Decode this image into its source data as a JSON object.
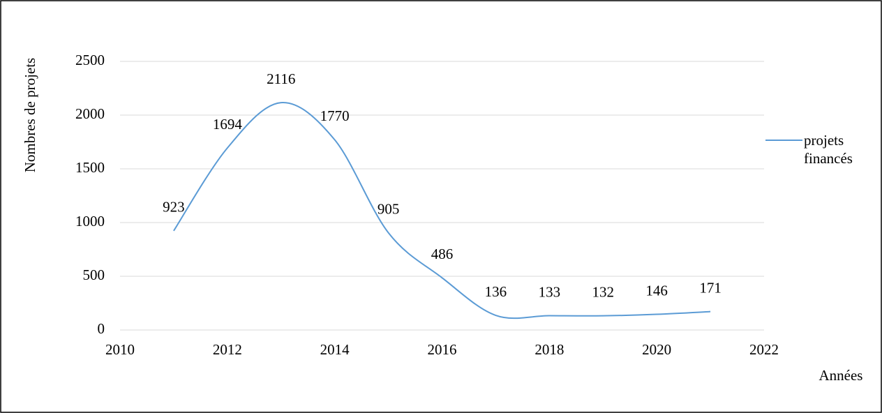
{
  "chart_data": {
    "type": "line",
    "x": [
      2011,
      2012,
      2013,
      2014,
      2015,
      2016,
      2017,
      2018,
      2019,
      2020,
      2021
    ],
    "series": [
      {
        "name": "projets financés",
        "color": "#5b9bd5",
        "values": [
          923,
          1694,
          2116,
          1770,
          905,
          486,
          136,
          133,
          132,
          146,
          171
        ]
      }
    ],
    "xlim": [
      2010,
      2022
    ],
    "xticks": [
      2010,
      2012,
      2014,
      2016,
      2018,
      2020,
      2022
    ],
    "ylim": [
      0,
      2500
    ],
    "yticks": [
      0,
      500,
      1000,
      1500,
      2000,
      2500
    ],
    "xlabel": "Années",
    "ylabel": "Nombres de projets",
    "grid": true,
    "smooth": true,
    "legend": "right",
    "data_labels": true
  }
}
